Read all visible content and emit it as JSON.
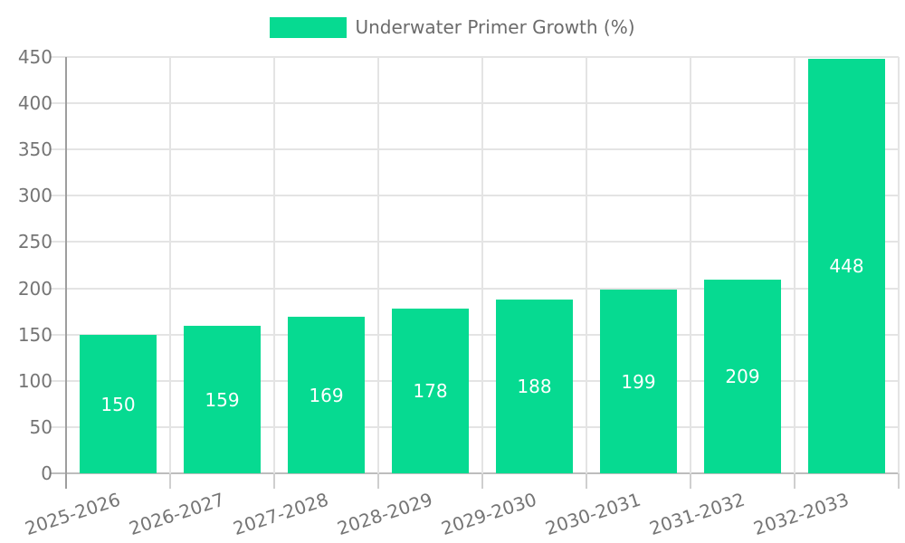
{
  "chart_data": {
    "type": "bar",
    "title": "",
    "legend": {
      "label": "Underwater Primer Growth (%)",
      "position": "top"
    },
    "categories": [
      "2025-2026",
      "2026-2027",
      "2027-2028",
      "2028-2029",
      "2029-2030",
      "2030-2031",
      "2031-2032",
      "2032-2033"
    ],
    "series": [
      {
        "name": "Underwater Primer Growth (%)",
        "values": [
          150,
          159,
          169,
          178,
          188,
          199,
          209,
          448
        ]
      }
    ],
    "xlabel": "",
    "ylabel": "",
    "ylim": [
      0,
      450
    ],
    "yticks": [
      0,
      50,
      100,
      150,
      200,
      250,
      300,
      350,
      400,
      450
    ],
    "grid": true,
    "x_label_rotation_deg": -18,
    "colors": {
      "bar": "#06DA91",
      "value_label": "#ffffff",
      "tick_label": "#757575",
      "legend_label": "#6b6b6b",
      "grid_line": "#e4e4e4",
      "y_axis_line": "#9e9e9e",
      "baseline": "#bdbdbd",
      "tick_mark": "#cfcfcf"
    }
  }
}
